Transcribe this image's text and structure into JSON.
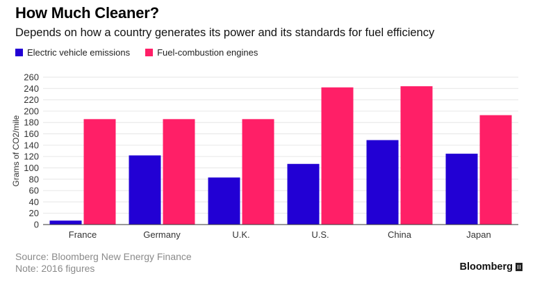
{
  "header": {
    "title": "How Much Cleaner?",
    "subtitle": "Depends on how a country generates its power and its standards for fuel efficiency"
  },
  "footer": {
    "source": "Source: Bloomberg New Energy Finance",
    "note": "Note: 2016 figures",
    "brand": "Bloomberg"
  },
  "colors": {
    "electric": "#2200d4",
    "combustion": "#ff1f67"
  },
  "chart_data": {
    "type": "bar",
    "title": "How Much Cleaner?",
    "subtitle": "Depends on how a country generates its power and its standards for fuel efficiency",
    "xlabel": "",
    "ylabel": "Grams of CO2/mile",
    "ylim": [
      0,
      260
    ],
    "yticks": [
      0,
      20,
      40,
      60,
      80,
      100,
      120,
      140,
      160,
      180,
      200,
      220,
      240,
      260
    ],
    "grid": true,
    "legend_position": "top-left",
    "categories": [
      "France",
      "Germany",
      "U.K.",
      "U.S.",
      "China",
      "Japan"
    ],
    "series": [
      {
        "name": "Electric vehicle emissions",
        "values": [
          7,
          122,
          83,
          107,
          149,
          125
        ]
      },
      {
        "name": "Fuel-combustion engines",
        "values": [
          186,
          186,
          186,
          242,
          244,
          193
        ]
      }
    ]
  }
}
